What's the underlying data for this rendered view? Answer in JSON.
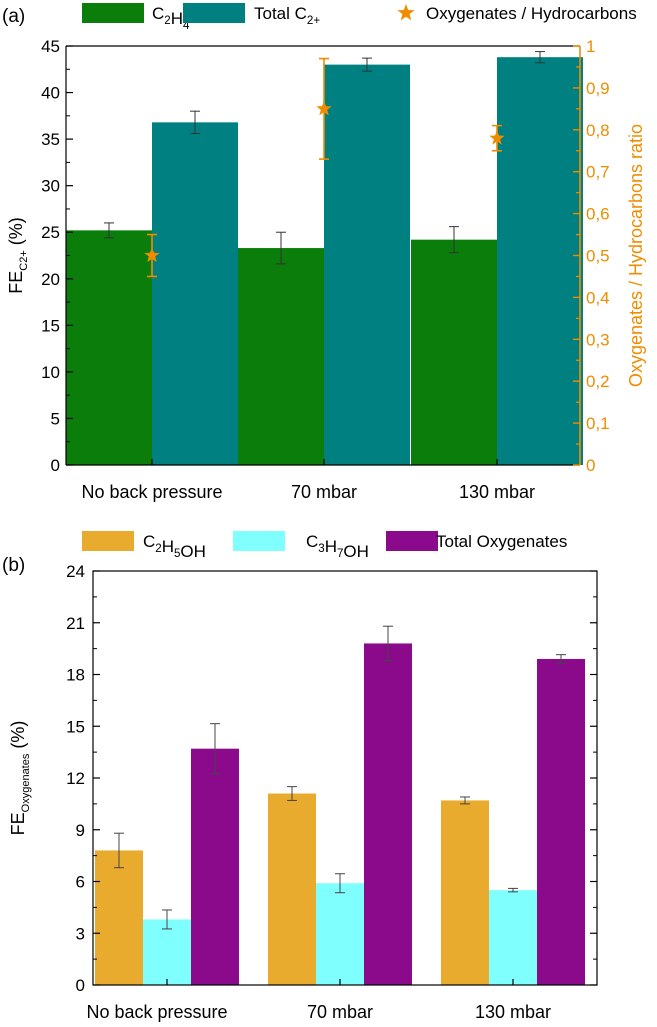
{
  "chart_data": [
    {
      "panel_label": "(a)",
      "type": "bar",
      "categories": [
        "No back pressure",
        "70 mbar",
        "130 mbar"
      ],
      "series": [
        {
          "name": "C2H4",
          "name_main": "C",
          "name_parts": [
            {
              "t": "2",
              "sub": true
            },
            {
              "t": "H",
              "sub": false
            },
            {
              "t": "4",
              "sub": true
            }
          ],
          "color": "#0b7d0b",
          "values": [
            25.2,
            23.3,
            24.2
          ],
          "errors": [
            0.8,
            1.7,
            1.4
          ]
        },
        {
          "name": "Total C2+",
          "name_main": "Total C",
          "name_parts": [
            {
              "t": "2+",
              "sub": true
            }
          ],
          "color": "#008080",
          "values": [
            36.8,
            43.0,
            43.8
          ],
          "errors": [
            1.2,
            0.7,
            0.6
          ]
        }
      ],
      "secondary_series": {
        "name": "Oxygenates / Hydrocarbons",
        "type": "scatter",
        "marker": "star",
        "color": "#f08c00",
        "values": [
          0.5,
          0.85,
          0.78
        ],
        "errors": [
          0.05,
          0.12,
          0.03
        ]
      },
      "ylabel": "FE",
      "ylabel_sub": "C2+",
      "ylabel_unit": "(%)",
      "ylim": [
        0,
        45
      ],
      "yticks": [
        "0",
        "5",
        "10",
        "15",
        "20",
        "25",
        "30",
        "35",
        "40",
        "45"
      ],
      "y2label": "Oxygenates / Hydrocarbons ratio",
      "y2lim": [
        0,
        1
      ],
      "y2ticks": [
        "0",
        "0,1",
        "0,2",
        "0,3",
        "0,4",
        "0,5",
        "0,6",
        "0,7",
        "0,8",
        "0,9",
        "1"
      ],
      "legend": "top"
    },
    {
      "panel_label": "(b)",
      "type": "bar",
      "categories": [
        "No back pressure",
        "70 mbar",
        "130 mbar"
      ],
      "series": [
        {
          "name": "C2H5OH",
          "name_main": "C",
          "name_parts": [
            {
              "t": "2",
              "sub": true
            },
            {
              "t": "H",
              "sub": false
            },
            {
              "t": "5",
              "sub": true
            },
            {
              "t": "OH",
              "sub": false
            }
          ],
          "color": "#e8ab2e",
          "values": [
            7.8,
            11.1,
            10.7
          ],
          "errors": [
            1.0,
            0.4,
            0.2
          ]
        },
        {
          "name": "C3H7OH",
          "name_main": "C",
          "name_parts": [
            {
              "t": "3",
              "sub": true
            },
            {
              "t": "H",
              "sub": false
            },
            {
              "t": "7",
              "sub": true
            },
            {
              "t": "OH",
              "sub": false
            }
          ],
          "color": "#80ffff",
          "values": [
            3.8,
            5.9,
            5.5
          ],
          "errors": [
            0.55,
            0.55,
            0.1
          ]
        },
        {
          "name": "Total Oxygenates",
          "name_main": "Total Oxygenates",
          "name_parts": [],
          "color": "#8b0a8b",
          "values": [
            13.7,
            19.8,
            18.9
          ],
          "errors": [
            1.45,
            1.0,
            0.25
          ]
        }
      ],
      "ylabel": "FE",
      "ylabel_sub": "Oxygenates",
      "ylabel_unit": "(%)",
      "ylim": [
        0,
        24
      ],
      "yticks": [
        "0",
        "3",
        "6",
        "9",
        "12",
        "15",
        "18",
        "21",
        "24"
      ],
      "legend": "top"
    }
  ]
}
